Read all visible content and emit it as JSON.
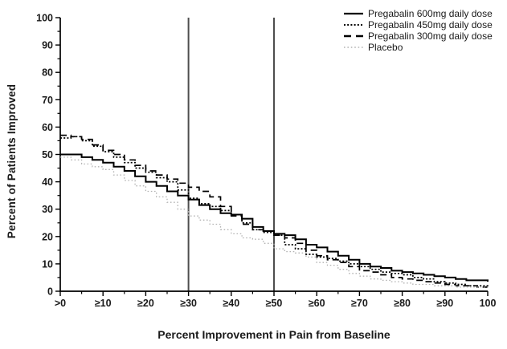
{
  "chart_data": {
    "type": "line",
    "step": true,
    "title": "",
    "xlabel": "Percent Improvement in Pain from Baseline",
    "ylabel": "Percent of Patients Improved",
    "xlim": [
      0,
      100
    ],
    "ylim": [
      0,
      100
    ],
    "grid": false,
    "legend_position": "top-right",
    "x_major_ticks": [
      0,
      10,
      20,
      30,
      40,
      50,
      60,
      70,
      80,
      90,
      100
    ],
    "x_tick_labels": [
      ">0",
      "≥10",
      "≥20",
      "≥30",
      "≥40",
      "≥50",
      "≥60",
      "≥70",
      "≥80",
      "≥90",
      "100"
    ],
    "y_major_ticks": [
      0,
      10,
      20,
      30,
      40,
      50,
      60,
      70,
      80,
      90,
      100
    ],
    "y_tick_labels": [
      "0",
      "10",
      "20",
      "30",
      "40",
      "50",
      "60",
      "70",
      "80",
      "90",
      "100"
    ],
    "minor_tick_step": 5,
    "reference_lines_x": [
      30,
      50
    ],
    "reference_line_color": "#4d4d4d",
    "axis_color": "#000000",
    "x": [
      0,
      2.5,
      5,
      7.5,
      10,
      12.5,
      15,
      17.5,
      20,
      22.5,
      25,
      27.5,
      30,
      32.5,
      35,
      37.5,
      40,
      42.5,
      45,
      47.5,
      50,
      52.5,
      55,
      57.5,
      60,
      62.5,
      65,
      67.5,
      70,
      72.5,
      75,
      77.5,
      80,
      82.5,
      85,
      87.5,
      90,
      92.5,
      95,
      97.5,
      100
    ],
    "series": [
      {
        "name": "Pregabalin 600mg daily dose",
        "line_style": "solid",
        "color": "#000000",
        "values": [
          50,
          50,
          49,
          48,
          47,
          45.5,
          44,
          42,
          40,
          38.5,
          36.5,
          35,
          33.5,
          31.5,
          30,
          28.5,
          28,
          26.5,
          23.5,
          22,
          21,
          20.5,
          19,
          17,
          16,
          14.5,
          13,
          11.5,
          10,
          9,
          8.5,
          7.5,
          7,
          6.5,
          6,
          5.5,
          5,
          4.5,
          4,
          4,
          3.5
        ]
      },
      {
        "name": "Pregabalin 450mg daily dose",
        "line_style": "dotted",
        "color": "#000000",
        "values": [
          56,
          56.5,
          55,
          53,
          51,
          49,
          47,
          45,
          43.5,
          41.5,
          40,
          37,
          34,
          32,
          31,
          29.5,
          28,
          25,
          22.5,
          21.5,
          20.5,
          17,
          15.5,
          13.5,
          12.5,
          12,
          11,
          10,
          9,
          8,
          7,
          6.5,
          6,
          5,
          4.5,
          3.5,
          3,
          2.5,
          2,
          2,
          1.5
        ]
      },
      {
        "name": "Pregabalin 300mg daily dose",
        "line_style": "dashed",
        "color": "#000000",
        "values": [
          57,
          56.5,
          55.5,
          53.5,
          51.5,
          50,
          48,
          46,
          44,
          42.5,
          41,
          39.5,
          38,
          36.5,
          34.5,
          31,
          27.5,
          24.5,
          22.5,
          22,
          20.5,
          19.5,
          17.5,
          15,
          13,
          11.5,
          10.5,
          9,
          7.5,
          7,
          6,
          5,
          4.5,
          4,
          3.5,
          3,
          2.5,
          2,
          2,
          1.5,
          1.5
        ]
      },
      {
        "name": "Placebo",
        "line_style": "sparse-dotted",
        "color": "#b3b3b3",
        "values": [
          49,
          48,
          46.5,
          45.5,
          44.5,
          42.5,
          40.5,
          38.5,
          36.5,
          34.5,
          32.5,
          30,
          27.5,
          26,
          24.5,
          22.5,
          21,
          19.5,
          19,
          17.5,
          15.5,
          14.5,
          14,
          12.5,
          10.5,
          9.5,
          8,
          6.5,
          5.5,
          4.5,
          4,
          3.5,
          3,
          2.5,
          2.5,
          2,
          2,
          1.5,
          1.5,
          1.5,
          1
        ]
      }
    ]
  }
}
